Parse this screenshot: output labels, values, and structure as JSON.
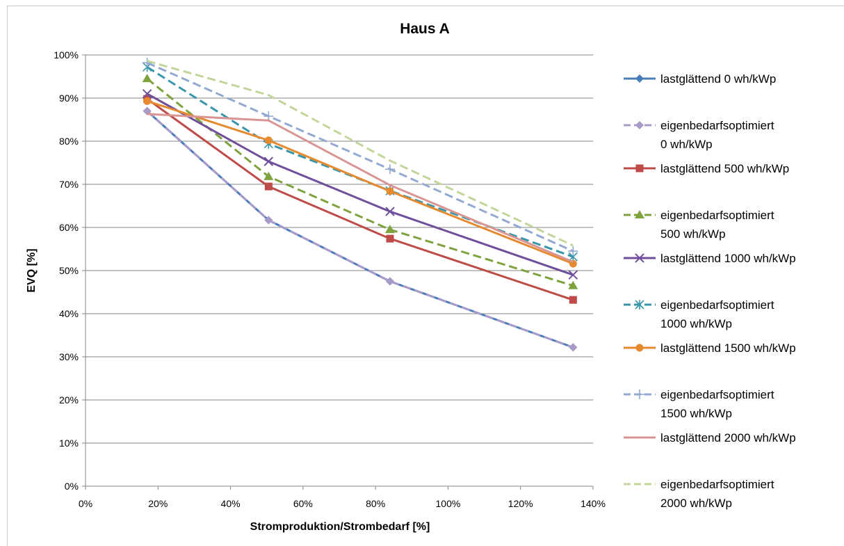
{
  "chart_data": {
    "type": "line",
    "title": "Haus A",
    "xlabel": "Stromproduktion/Strombedarf [%]",
    "ylabel": "EVQ [%]",
    "xlim": [
      0,
      140
    ],
    "ylim": [
      0,
      100
    ],
    "x_ticks": [
      "0%",
      "20%",
      "40%",
      "60%",
      "80%",
      "100%",
      "120%",
      "140%"
    ],
    "y_ticks": [
      "0%",
      "10%",
      "20%",
      "30%",
      "40%",
      "50%",
      "60%",
      "70%",
      "80%",
      "90%",
      "100%"
    ],
    "grid": "horizontal",
    "legend_position": "right",
    "x": [
      17,
      50.5,
      84,
      134.5
    ],
    "series": [
      {
        "name": "lastglättend 0 wh/kWp",
        "legend_lines": [
          "lastglättend 0 wh/kWp"
        ],
        "values": [
          87,
          61.7,
          47.5,
          32.2
        ],
        "color": "#4a7ebb",
        "dash": "solid",
        "marker": "diamond"
      },
      {
        "name": "eigenbedarfsoptimiert 0 wh/kWp",
        "legend_lines": [
          "eigenbedarfsoptimiert",
          "0 wh/kWp"
        ],
        "values": [
          87,
          61.7,
          47.5,
          32.2
        ],
        "color": "#a99bc9",
        "dash": "dashed",
        "marker": "diamond"
      },
      {
        "name": "lastglättend 500 wh/kWp",
        "legend_lines": [
          "lastglättend 500 wh/kWp"
        ],
        "values": [
          89.8,
          69.5,
          57.4,
          43.2
        ],
        "color": "#be4b48",
        "dash": "solid",
        "marker": "square"
      },
      {
        "name": "eigenbedarfsoptimiert 500 wh/kWp",
        "legend_lines": [
          "eigenbedarfsoptimiert",
          "500 wh/kWp"
        ],
        "values": [
          94.5,
          71.8,
          59.5,
          46.5
        ],
        "color": "#7ea23e",
        "dash": "dashed",
        "marker": "triangle"
      },
      {
        "name": "lastglättend 1000 wh/kWp",
        "legend_lines": [
          "lastglättend 1000 wh/kWp"
        ],
        "values": [
          91,
          75.3,
          63.7,
          49
        ],
        "color": "#6f4f9a",
        "dash": "solid",
        "marker": "x"
      },
      {
        "name": "eigenbedarfsoptimiert 1000 wh/kWp",
        "legend_lines": [
          "eigenbedarfsoptimiert",
          "1000 wh/kWp"
        ],
        "values": [
          97.2,
          79.4,
          68.5,
          53.2
        ],
        "color": "#3796aa",
        "dash": "dashed",
        "marker": "star"
      },
      {
        "name": "lastglättend 1500 wh/kWp",
        "legend_lines": [
          "lastglättend 1500 wh/kWp"
        ],
        "values": [
          89.3,
          80.2,
          68.4,
          51.6
        ],
        "color": "#e68a30",
        "dash": "solid",
        "marker": "circle"
      },
      {
        "name": "eigenbedarfsoptimiert 1500 wh/kWp",
        "legend_lines": [
          "eigenbedarfsoptimiert",
          "1500 wh/kWp"
        ],
        "values": [
          98.2,
          85.8,
          73.5,
          54.5
        ],
        "color": "#93a9d1",
        "dash": "dashed",
        "marker": "plus"
      },
      {
        "name": "lastglättend 2000 wh/kWp",
        "legend_lines": [
          "lastglättend 2000 wh/kWp"
        ],
        "values": [
          86.3,
          84.8,
          69.8,
          52
        ],
        "color": "#d99593",
        "dash": "solid",
        "marker": "none"
      },
      {
        "name": "eigenbedarfsoptimiert 2000 wh/kWp",
        "legend_lines": [
          "eigenbedarfsoptimiert",
          "2000 wh/kWp"
        ],
        "values": [
          98.6,
          90.7,
          75.5,
          55.8
        ],
        "color": "#c2d69b",
        "dash": "dashed",
        "marker": "none"
      }
    ]
  }
}
